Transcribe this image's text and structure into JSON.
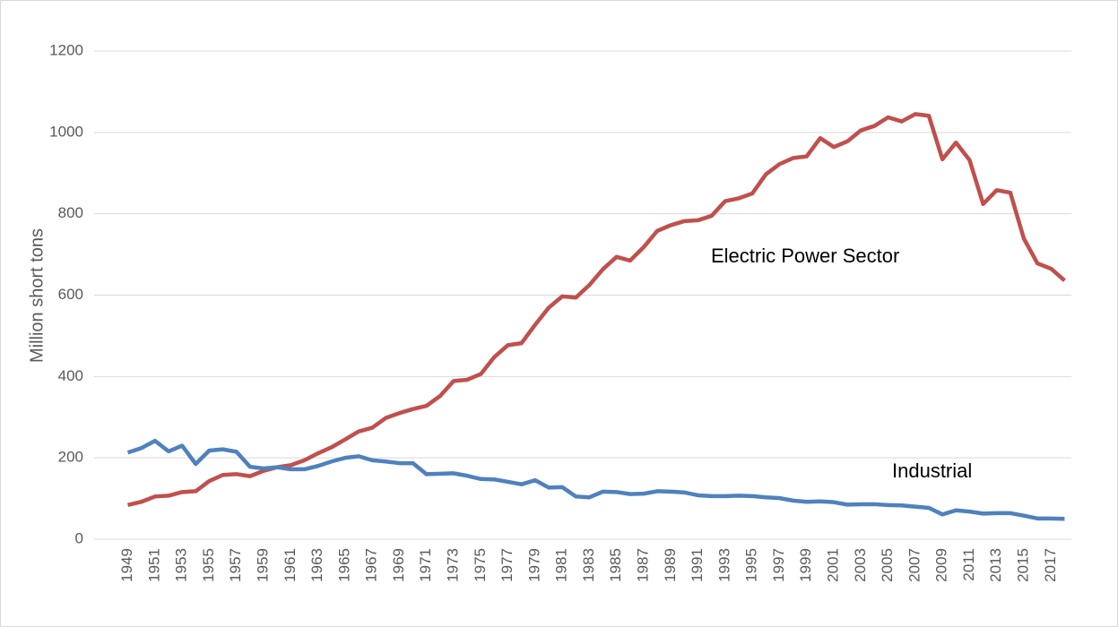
{
  "chart_data": {
    "type": "line",
    "y_label": "Million short tons",
    "categories": [
      "1949",
      null,
      "1951",
      null,
      "1953",
      null,
      "1955",
      null,
      "1957",
      null,
      "1959",
      null,
      "1961",
      null,
      "1963",
      null,
      "1965",
      null,
      "1967",
      null,
      "1969",
      null,
      "1971",
      null,
      "1973",
      null,
      "1975",
      null,
      "1977",
      null,
      "1979",
      null,
      "1981",
      null,
      "1983",
      null,
      "1985",
      null,
      "1987",
      null,
      "1989",
      null,
      "1991",
      null,
      "1993",
      null,
      "1995",
      null,
      "1997",
      null,
      "1999",
      null,
      "2001",
      null,
      "2003",
      null,
      "2005",
      null,
      "2007",
      null,
      "2009",
      null,
      "2011",
      null,
      "2013",
      null,
      "2015",
      null,
      "2017",
      null
    ],
    "series": [
      {
        "name": "Electric Power Sector",
        "color": "#c0504d",
        "values": [
          84,
          92,
          105,
          107,
          116,
          118,
          143,
          158,
          160,
          155,
          168,
          177,
          182,
          194,
          211,
          226,
          245,
          265,
          274,
          298,
          310,
          320,
          328,
          352,
          389,
          392,
          406,
          448,
          477,
          482,
          527,
          569,
          597,
          594,
          625,
          664,
          694,
          685,
          718,
          758,
          772,
          782,
          784,
          795,
          831,
          838,
          850,
          897,
          922,
          937,
          941,
          986,
          964,
          978,
          1005,
          1016,
          1037,
          1027,
          1045,
          1041,
          934,
          975,
          932,
          824,
          858,
          852,
          739,
          678,
          665,
          636
        ]
      },
      {
        "name": "Industrial",
        "color": "#4f81bd",
        "values": [
          213,
          224,
          242,
          216,
          230,
          185,
          218,
          221,
          215,
          178,
          174,
          177,
          172,
          172,
          180,
          191,
          200,
          204,
          194,
          191,
          187,
          187,
          160,
          161,
          162,
          156,
          148,
          147,
          141,
          135,
          145,
          127,
          128,
          105,
          103,
          117,
          116,
          111,
          112,
          118,
          117,
          115,
          108,
          106,
          106,
          107,
          106,
          103,
          101,
          95,
          92,
          93,
          91,
          85,
          86,
          86,
          84,
          83,
          80,
          77,
          61,
          71,
          68,
          63,
          64,
          64,
          58,
          51,
          51,
          50
        ]
      }
    ],
    "ylim": [
      0,
      1200
    ],
    "yticks": [
      0,
      200,
      400,
      600,
      800,
      1000,
      1200
    ],
    "grid": true
  }
}
